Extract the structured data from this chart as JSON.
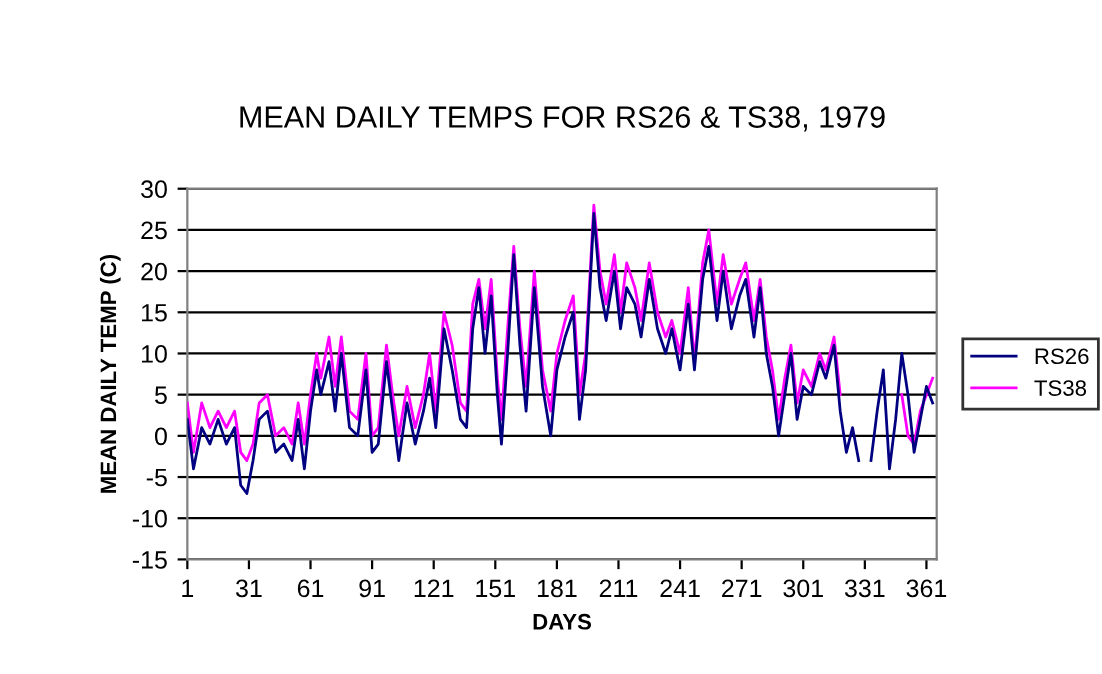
{
  "chart_data": {
    "type": "line",
    "title": "MEAN DAILY TEMPS FOR RS26 & TS38, 1979",
    "xlabel": "DAYS",
    "ylabel": "MEAN DAILY TEMP (C)",
    "x": [
      1,
      4,
      8,
      12,
      16,
      20,
      24,
      27,
      30,
      33,
      36,
      40,
      44,
      48,
      52,
      55,
      58,
      61,
      64,
      66,
      70,
      73,
      76,
      80,
      84,
      88,
      91,
      94,
      98,
      101,
      104,
      108,
      112,
      116,
      119,
      122,
      126,
      130,
      134,
      137,
      140,
      143,
      146,
      149,
      152,
      154,
      157,
      160,
      163,
      166,
      170,
      174,
      178,
      181,
      185,
      189,
      192,
      195,
      199,
      202,
      205,
      209,
      212,
      215,
      219,
      222,
      226,
      230,
      234,
      237,
      241,
      245,
      248,
      252,
      255,
      259,
      262,
      266,
      270,
      273,
      277,
      280,
      283,
      286,
      289,
      292,
      295,
      298,
      301,
      305,
      309,
      312,
      316,
      319,
      322,
      325,
      328,
      331,
      334,
      337,
      340,
      343,
      346,
      349,
      352,
      355,
      358,
      361,
      364
    ],
    "series": [
      {
        "name": "RS26",
        "color": "#000080",
        "values": [
          2,
          -4,
          1,
          -1,
          2,
          -1,
          1,
          -6,
          -7,
          -3,
          2,
          3,
          -2,
          -1,
          -3,
          2,
          -4,
          3,
          8,
          5,
          9,
          3,
          10,
          1,
          0,
          8,
          -2,
          -1,
          9,
          3,
          -3,
          4,
          -1,
          3,
          7,
          1,
          13,
          8,
          2,
          1,
          13,
          18,
          10,
          17,
          5,
          -1,
          10,
          22,
          11,
          3,
          18,
          6,
          0,
          8,
          12,
          15,
          2,
          8,
          27,
          18,
          14,
          20,
          13,
          18,
          16,
          12,
          19,
          13,
          10,
          13,
          8,
          16,
          8,
          19,
          23,
          14,
          20,
          13,
          17,
          19,
          12,
          18,
          10,
          6,
          0,
          5,
          10,
          2,
          6,
          5,
          9,
          7,
          11,
          3,
          -2,
          1,
          -3,
          null,
          -3,
          3,
          8,
          -4,
          2,
          10,
          5,
          -2,
          2,
          6,
          4
        ]
      },
      {
        "name": "TS38",
        "color": "#ff00ff",
        "values": [
          4,
          -2,
          4,
          1,
          3,
          1,
          3,
          -2,
          -3,
          -1,
          4,
          5,
          0,
          1,
          -1,
          4,
          -1,
          5,
          10,
          7,
          12,
          6,
          12,
          3,
          2,
          10,
          0,
          1,
          11,
          5,
          0,
          6,
          1,
          5,
          10,
          3,
          15,
          11,
          4,
          3,
          16,
          19,
          13,
          19,
          7,
          2,
          13,
          23,
          13,
          6,
          20,
          8,
          3,
          10,
          14,
          17,
          5,
          10,
          28,
          20,
          16,
          22,
          15,
          21,
          18,
          14,
          21,
          15,
          12,
          14,
          10,
          18,
          9,
          21,
          25,
          16,
          22,
          16,
          19,
          21,
          14,
          19,
          12,
          8,
          2,
          7,
          11,
          4,
          8,
          6,
          10,
          8,
          12,
          5,
          null,
          null,
          null,
          null,
          null,
          null,
          null,
          null,
          null,
          5,
          0,
          -1,
          3,
          5,
          7
        ]
      }
    ],
    "xlim": [
      1,
      366
    ],
    "xticks": [
      1,
      31,
      61,
      91,
      121,
      151,
      181,
      211,
      241,
      271,
      301,
      331,
      361
    ],
    "ylim": [
      -15,
      30
    ],
    "yticks": [
      -15,
      -10,
      -5,
      0,
      5,
      10,
      15,
      20,
      25,
      30
    ],
    "grid": "y",
    "legend": "right",
    "marker": "none",
    "line_style": "solid"
  }
}
